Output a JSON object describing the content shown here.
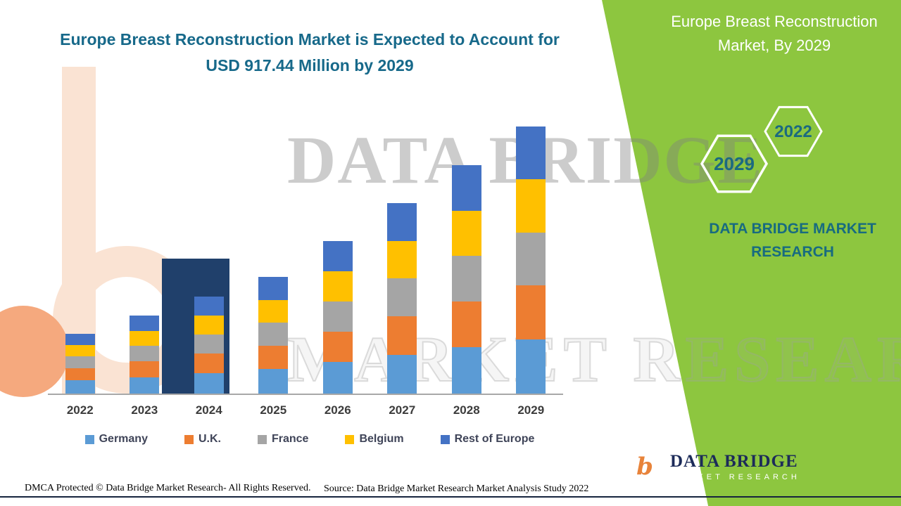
{
  "header": {
    "title": "Europe Breast Reconstruction Market is Expected to Account for USD 917.44 Million by 2029"
  },
  "green_panel": {
    "title": "Europe Breast Reconstruction Market, By 2029",
    "hexagon_back_label": "2022",
    "hexagon_front_label": "2029",
    "brand_text": "DATA BRIDGE MARKET RESEARCH",
    "colors": {
      "green": "#8dc63f",
      "teal": "#186b80"
    }
  },
  "watermark": {
    "line1": "DATA BRIDGE",
    "line2": "MARKET RESEARCH"
  },
  "chart_data": {
    "type": "bar",
    "stacked": true,
    "title": "Europe Breast Reconstruction Market is Expected to Account for USD 917.44 Million by 2029",
    "unit": "USD Million",
    "categories": [
      "2022",
      "2023",
      "2024",
      "2025",
      "2026",
      "2027",
      "2028",
      "2029"
    ],
    "series": [
      {
        "name": "Germany",
        "color": "#5b9bd5",
        "values": [
          46,
          56,
          70,
          84,
          108,
          134,
          160,
          187
        ]
      },
      {
        "name": "U.K.",
        "color": "#ed7d31",
        "values": [
          41,
          54,
          67,
          80,
          105,
          131,
          157,
          184
        ]
      },
      {
        "name": "France",
        "color": "#a5a5a5",
        "values": [
          40,
          53,
          66,
          79,
          104,
          130,
          156,
          183
        ]
      },
      {
        "name": "Belgium",
        "color": "#ffc000",
        "values": [
          39,
          52,
          65,
          79,
          104,
          130,
          156,
          182
        ]
      },
      {
        "name": "Rest of Europe",
        "color": "#4472c4",
        "values": [
          39,
          52,
          65,
          79,
          103,
          129,
          156,
          181.44
        ]
      }
    ],
    "totals": [
      205,
      267,
      333,
      401,
      524,
      654,
      785,
      917.44
    ],
    "xlabel": "",
    "ylabel": "",
    "ylim": [
      0,
      940
    ],
    "grid": false,
    "legend_position": "bottom"
  },
  "logo": {
    "glyph": "b",
    "name": "DATA BRIDGE",
    "subtitle": "MARKET RESEARCH"
  },
  "footer": {
    "left": "DMCA Protected © Data Bridge Market Research- All Rights Reserved.",
    "source": "Source: Data Bridge Market Research Market Analysis Study 2022"
  }
}
